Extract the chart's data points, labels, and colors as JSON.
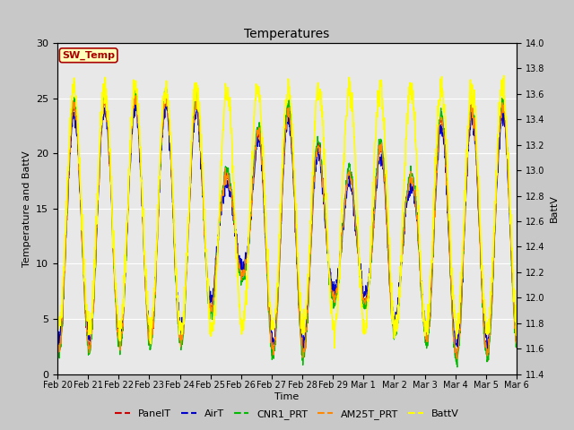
{
  "title": "Temperatures",
  "xlabel": "Time",
  "ylabel_left": "Temperature and BattV",
  "ylabel_right": "BattV",
  "ylim_left": [
    0,
    30
  ],
  "ylim_right": [
    11.4,
    14.0
  ],
  "xtick_labels": [
    "Feb 20",
    "Feb 21",
    "Feb 22",
    "Feb 23",
    "Feb 24",
    "Feb 25",
    "Feb 26",
    "Feb 27",
    "Feb 28",
    "Feb 29",
    "Mar 1",
    "Mar 2",
    "Mar 3",
    "Mar 4",
    "Mar 5",
    "Mar 6"
  ],
  "ytick_left": [
    0,
    5,
    10,
    15,
    20,
    25,
    30
  ],
  "ytick_right": [
    11.4,
    11.6,
    11.8,
    12.0,
    12.2,
    12.4,
    12.6,
    12.8,
    13.0,
    13.2,
    13.4,
    13.6,
    13.8,
    14.0
  ],
  "series": [
    {
      "name": "PanelT",
      "color": "#cc0000",
      "lw": 0.8
    },
    {
      "name": "AirT",
      "color": "#0000cc",
      "lw": 0.8
    },
    {
      "name": "CNR1_PRT",
      "color": "#00bb00",
      "lw": 0.8
    },
    {
      "name": "AM25T_PRT",
      "color": "#ff8800",
      "lw": 0.8
    },
    {
      "name": "BattV",
      "color": "#ffff00",
      "lw": 1.2
    }
  ],
  "annotation_text": "SW_Temp",
  "annotation_color": "#aa0000",
  "annotation_bg": "#ffffbb",
  "annotation_edge": "#aa0000",
  "fig_bg": "#c8c8c8",
  "plot_bg": "#e8e8e8",
  "grid_color": "#ffffff",
  "grid_lw": 0.8
}
